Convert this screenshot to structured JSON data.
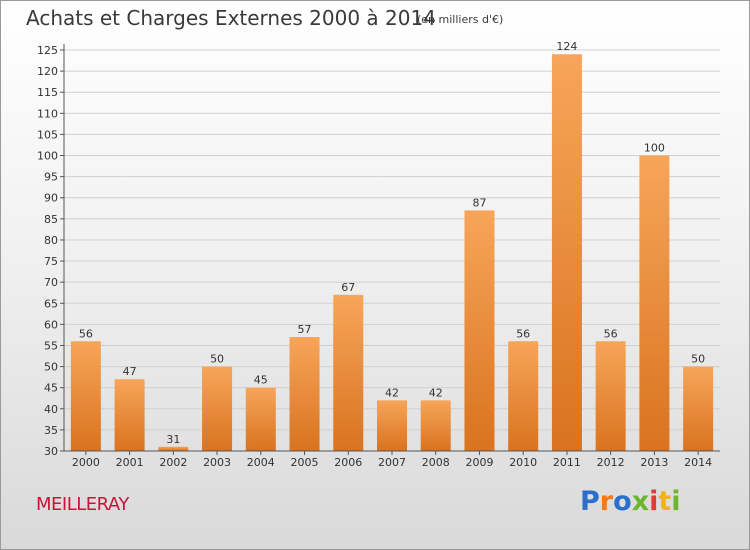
{
  "title": "Achats et Charges Externes 2000 à 2014",
  "subtitle": "(en milliers d'€)",
  "location": "MEILLERAY",
  "logo": {
    "letters": [
      "P",
      "r",
      "o",
      "x",
      "i",
      "t",
      "i"
    ],
    "colors": [
      "#2a6fc9",
      "#f07a1c",
      "#2a6fc9",
      "#6cb52d",
      "#e23a3a",
      "#f0b418",
      "#6cb52d"
    ]
  },
  "colors": {
    "bar_light": "#f7a55a",
    "bar_dark": "#d9731f",
    "axis": "#555555",
    "grid": "#d0d0d0"
  },
  "chart_data": {
    "type": "bar",
    "categories": [
      "2000",
      "2001",
      "2002",
      "2003",
      "2004",
      "2005",
      "2006",
      "2007",
      "2008",
      "2009",
      "2010",
      "2011",
      "2012",
      "2013",
      "2014"
    ],
    "values": [
      56,
      47,
      31,
      50,
      45,
      57,
      67,
      42,
      42,
      87,
      56,
      124,
      56,
      100,
      50
    ],
    "ylim": [
      30,
      125
    ],
    "yticks": [
      30,
      35,
      40,
      45,
      50,
      55,
      60,
      65,
      70,
      75,
      80,
      85,
      90,
      95,
      100,
      105,
      110,
      115,
      120,
      125
    ],
    "grid": true,
    "xlabel": "",
    "ylabel": ""
  }
}
